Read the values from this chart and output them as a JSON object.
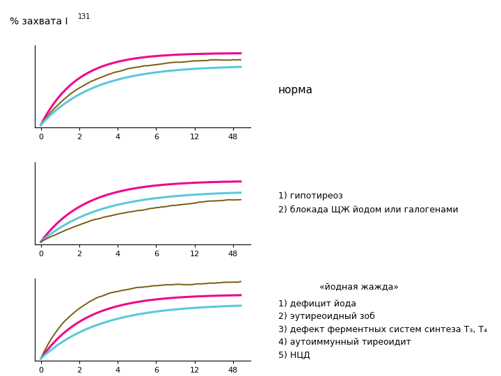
{
  "ylabel": "% захвата I",
  "ylabel_super": "131",
  "x_tick_labels": [
    "0",
    "2",
    "4",
    "6",
    "12",
    "48"
  ],
  "colors": {
    "pink": "#F0068A",
    "brown": "#7B5B10",
    "cyan": "#5BC8DC"
  },
  "panel1_label": "норма",
  "panel2_label": "1) гипотиреоз\n2) блокада ЩЖ йодом или галогенами",
  "panel3_title": "«йодная жажда»",
  "panel3_list": "1) дефицит йода\n2) эутиреоидный зоб\n3) дефект ферментных систем синтеза Т₃, Т₄\n4) аутоиммунный тиреоидит\n5) НЦД",
  "background": "#FFFFFF",
  "lw_smooth": 2.2,
  "lw_noisy": 1.4
}
